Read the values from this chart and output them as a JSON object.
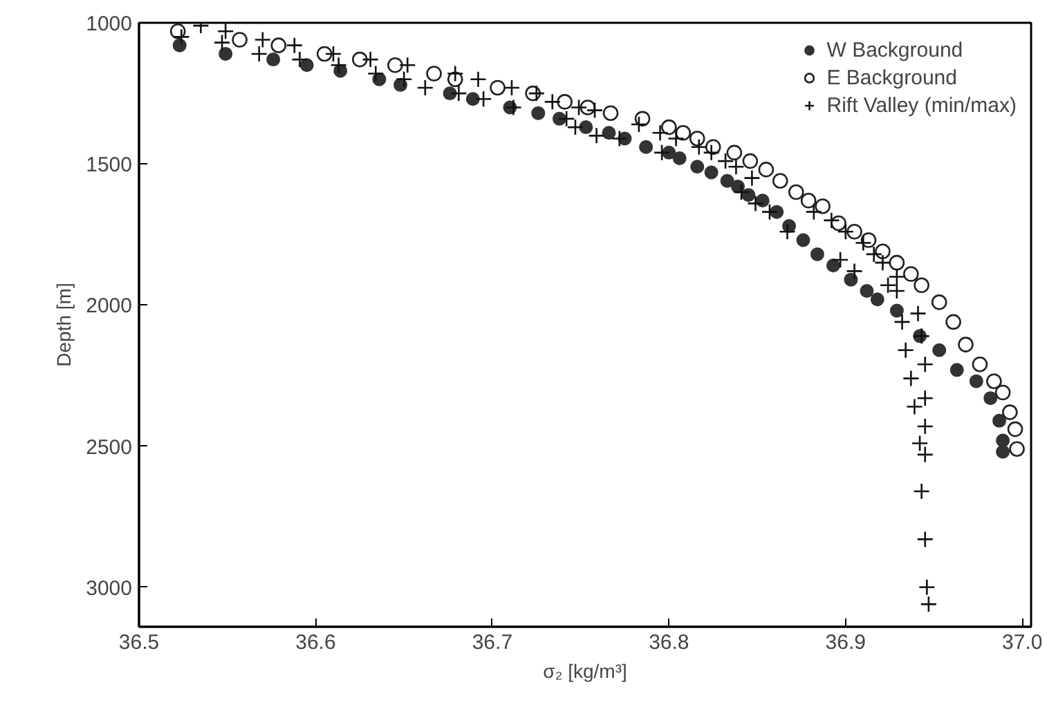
{
  "chart_data": {
    "type": "scatter",
    "xlabel": "σ₂ [kg/m³]",
    "ylabel": "Depth [m]",
    "xlim": [
      36.5,
      37.005
    ],
    "ylim": [
      3140,
      1000
    ],
    "xticks": [
      {
        "value": 36.5,
        "label": "36.5"
      },
      {
        "value": 36.6,
        "label": "36.6"
      },
      {
        "value": 36.7,
        "label": "36.7"
      },
      {
        "value": 36.8,
        "label": "36.8"
      },
      {
        "value": 36.9,
        "label": "36.9"
      },
      {
        "value": 37.0,
        "label": "37.0"
      }
    ],
    "yticks": [
      1000,
      1500,
      2000,
      2500,
      3000
    ],
    "grid": false,
    "legend": "top right",
    "series": [
      {
        "name": "W Background",
        "color": "#333333",
        "marker": "circle",
        "x": [
          36.523,
          36.549,
          36.576,
          36.595,
          36.614,
          36.636,
          36.648,
          36.676,
          36.689,
          36.71,
          36.726,
          36.738,
          36.753,
          36.766,
          36.775,
          36.787,
          36.8,
          36.806,
          36.816,
          36.824,
          36.833,
          36.839,
          36.845,
          36.853,
          36.861,
          36.868,
          36.876,
          36.884,
          36.893,
          36.903,
          36.912,
          36.918,
          36.929,
          36.942,
          36.953,
          36.963,
          36.974,
          36.982,
          36.987,
          36.989,
          36.989
        ],
        "values": [
          1080,
          1110,
          1130,
          1150,
          1170,
          1200,
          1220,
          1250,
          1270,
          1300,
          1320,
          1340,
          1370,
          1390,
          1410,
          1440,
          1460,
          1480,
          1510,
          1530,
          1560,
          1580,
          1610,
          1630,
          1670,
          1720,
          1770,
          1820,
          1860,
          1910,
          1950,
          1980,
          2020,
          2110,
          2160,
          2230,
          2270,
          2330,
          2410,
          2480,
          2520
        ]
      },
      {
        "name": "E Background",
        "color": "#222222",
        "marker": "open_circle",
        "x": [
          36.522,
          36.557,
          36.579,
          36.605,
          36.625,
          36.645,
          36.667,
          36.679,
          36.703,
          36.723,
          36.741,
          36.754,
          36.767,
          36.785,
          36.8,
          36.808,
          36.816,
          36.825,
          36.837,
          36.846,
          36.855,
          36.863,
          36.872,
          36.879,
          36.887,
          36.896,
          36.905,
          36.913,
          36.921,
          36.929,
          36.937,
          36.943,
          36.953,
          36.961,
          36.968,
          36.976,
          36.984,
          36.989,
          36.993,
          36.996,
          36.997
        ],
        "values": [
          1030,
          1060,
          1080,
          1110,
          1130,
          1150,
          1180,
          1200,
          1230,
          1250,
          1280,
          1300,
          1320,
          1340,
          1370,
          1390,
          1410,
          1440,
          1460,
          1490,
          1520,
          1560,
          1600,
          1630,
          1650,
          1710,
          1740,
          1770,
          1810,
          1850,
          1890,
          1930,
          1990,
          2060,
          2140,
          2210,
          2270,
          2310,
          2380,
          2440,
          2510
        ]
      },
      {
        "name": "Rift Valley (min/max)",
        "color": "#111111",
        "marker": "cross",
        "x": [
          36.535,
          36.549,
          36.524,
          36.547,
          36.57,
          36.568,
          36.588,
          36.591,
          36.61,
          36.613,
          36.631,
          36.634,
          36.652,
          36.65,
          36.662,
          36.679,
          36.681,
          36.692,
          36.695,
          36.711,
          36.712,
          36.725,
          36.734,
          36.742,
          36.749,
          36.747,
          36.758,
          36.759,
          36.772,
          36.783,
          36.795,
          36.796,
          36.804,
          36.817,
          36.824,
          36.832,
          36.838,
          36.847,
          36.841,
          36.849,
          36.857,
          36.867,
          36.882,
          36.892,
          36.9,
          36.91,
          36.916,
          36.921,
          36.929,
          36.897,
          36.905,
          36.924,
          36.929,
          36.932,
          36.934,
          36.937,
          36.939,
          36.942,
          36.943,
          36.945,
          36.946,
          36.947,
          36.941,
          36.943,
          36.945,
          36.945,
          36.945,
          36.945
        ],
        "values": [
          1010,
          1030,
          1050,
          1070,
          1060,
          1110,
          1080,
          1130,
          1110,
          1150,
          1130,
          1180,
          1150,
          1200,
          1230,
          1180,
          1250,
          1200,
          1270,
          1230,
          1300,
          1250,
          1280,
          1340,
          1300,
          1370,
          1310,
          1400,
          1410,
          1360,
          1390,
          1460,
          1410,
          1440,
          1460,
          1490,
          1510,
          1550,
          1600,
          1640,
          1670,
          1740,
          1670,
          1700,
          1740,
          1780,
          1820,
          1850,
          1900,
          1840,
          1880,
          1930,
          1950,
          2060,
          2160,
          2260,
          2360,
          2490,
          2660,
          2830,
          3000,
          3060,
          2030,
          2110,
          2210,
          2330,
          2430,
          2530
        ]
      }
    ]
  }
}
